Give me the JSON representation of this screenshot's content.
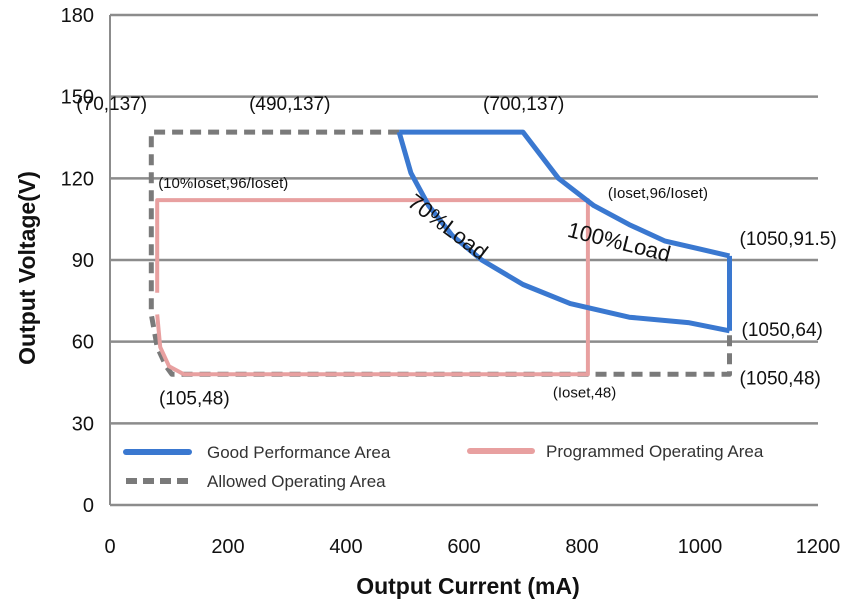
{
  "chart_data": {
    "type": "line",
    "xlabel": "Output Current (mA)",
    "ylabel": "Output Voltage(V)",
    "xlim": [
      0,
      1200
    ],
    "ylim": [
      0,
      180
    ],
    "x_ticks": [
      "0",
      "200",
      "400",
      "600",
      "800",
      "1000",
      "1200"
    ],
    "y_ticks": [
      "0",
      "30",
      "60",
      "90",
      "120",
      "150",
      "180"
    ],
    "grid": "horizontal",
    "legend_position": "bottom-inside",
    "series": [
      {
        "name": "Good Performance Area",
        "style": "solid",
        "color": "#3a78d0",
        "outer_curve": [
          [
            490,
            137
          ],
          [
            700,
            137
          ],
          [
            760,
            120
          ],
          [
            820,
            110
          ],
          [
            880,
            103
          ],
          [
            940,
            97
          ],
          [
            1000,
            94
          ],
          [
            1050,
            91.5
          ]
        ],
        "inner_curve": [
          [
            490,
            137
          ],
          [
            510,
            122
          ],
          [
            540,
            110
          ],
          [
            580,
            99
          ],
          [
            630,
            90
          ],
          [
            700,
            81
          ],
          [
            780,
            74
          ],
          [
            880,
            69
          ],
          [
            980,
            67
          ],
          [
            1050,
            64
          ]
        ]
      },
      {
        "name": "Programmed Operating Area",
        "style": "solid",
        "color": "#e8a0a0",
        "points": [
          [
            80,
            78
          ],
          [
            80,
            112
          ],
          [
            810,
            112
          ],
          [
            810,
            48
          ],
          [
            125,
            48
          ],
          [
            100,
            51
          ],
          [
            85,
            58
          ],
          [
            80,
            70
          ]
        ]
      },
      {
        "name": "Allowed Operating Area",
        "style": "dashed",
        "color": "#7a7a7a",
        "points": [
          [
            490,
            137
          ],
          [
            70,
            137
          ],
          [
            70,
            70
          ],
          [
            80,
            58
          ],
          [
            95,
            51
          ],
          [
            105,
            48
          ],
          [
            1050,
            48
          ],
          [
            1050,
            64
          ]
        ]
      }
    ],
    "annotations": [
      {
        "text": "(70,137)",
        "x": 70,
        "y": 137
      },
      {
        "text": "(490,137)",
        "x": 490,
        "y": 137
      },
      {
        "text": "(700,137)",
        "x": 700,
        "y": 137
      },
      {
        "text": "(10%Ioset,96/Ioset)",
        "x": 80,
        "y": 112
      },
      {
        "text": "(Ioset,96/Ioset)",
        "x": 810,
        "y": 112
      },
      {
        "text": "(1050,91.5)",
        "x": 1050,
        "y": 91.5
      },
      {
        "text": "(1050,64)",
        "x": 1050,
        "y": 64
      },
      {
        "text": "(1050,48)",
        "x": 1050,
        "y": 48
      },
      {
        "text": "(105,48)",
        "x": 105,
        "y": 48
      },
      {
        "text": "(Ioset,48)",
        "x": 810,
        "y": 48
      },
      {
        "text": "70%Load",
        "x": 565,
        "y": 100
      },
      {
        "text": "100%Load",
        "x": 860,
        "y": 94
      }
    ]
  }
}
